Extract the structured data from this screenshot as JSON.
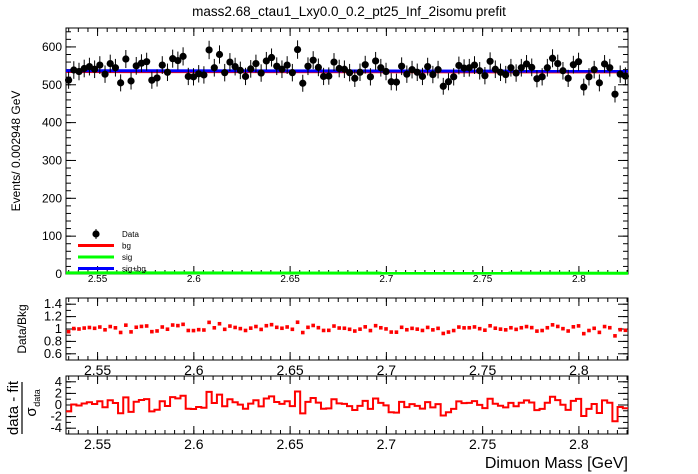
{
  "chart_data": [
    {
      "panel": "main",
      "type": "scatter",
      "title": "mass2.68_ctau1_Lxy0.0_0.2_pt25_Inf_2isomu   prefit",
      "ylabel": "Events/ 0.002948 GeV",
      "xlim": [
        2.5336,
        2.8255
      ],
      "ylim": [
        0,
        650
      ],
      "y_ticks": [
        0,
        100,
        200,
        300,
        400,
        500,
        600
      ],
      "x_ticks": [
        2.55,
        2.6,
        2.65,
        2.7,
        2.75,
        2.8
      ],
      "legend": {
        "placement": "bottom-left",
        "entries": [
          {
            "label": "Data",
            "color": "#000000"
          },
          {
            "label": "bg",
            "color": "#ff0000"
          },
          {
            "label": "sig",
            "color": "#00ff00"
          },
          {
            "label": "sig+bg",
            "color": "#0000ff"
          }
        ]
      },
      "series": [
        {
          "name": "Data",
          "style": "points-with-errors",
          "color": "#000000",
          "y": [
            512,
            539,
            535,
            543,
            548,
            541,
            552,
            528,
            556,
            545,
            505,
            568,
            510,
            550,
            557,
            561,
            512,
            518,
            552,
            533,
            569,
            564,
            575,
            522,
            521,
            529,
            526,
            592,
            545,
            580,
            532,
            560,
            548,
            538,
            522,
            542,
            556,
            531,
            563,
            572,
            549,
            541,
            552,
            532,
            593,
            504,
            549,
            565,
            546,
            522,
            523,
            560,
            543,
            541,
            532,
            517,
            533,
            553,
            521,
            563,
            545,
            535,
            508,
            507,
            549,
            528,
            540,
            533,
            522,
            548,
            527,
            540,
            496,
            508,
            521,
            551,
            544,
            545,
            552,
            537,
            524,
            562,
            541,
            533,
            527,
            545,
            531,
            545,
            555,
            546,
            516,
            521,
            545,
            570,
            556,
            537,
            517,
            553,
            561,
            494,
            521,
            540,
            505,
            555,
            545,
            475,
            528,
            523
          ]
        },
        {
          "name": "bg",
          "style": "line",
          "color": "#ff0000",
          "x": [
            2.5336,
            2.8255
          ],
          "y": [
            535,
            534
          ]
        },
        {
          "name": "sig",
          "style": "line",
          "color": "#00ff00",
          "x": [
            2.5336,
            2.8255
          ],
          "y": [
            3,
            2
          ]
        },
        {
          "name": "sig+bg",
          "style": "line",
          "color": "#0000ff",
          "x": [
            2.5336,
            2.8255
          ],
          "y": [
            537,
            536
          ]
        }
      ]
    },
    {
      "panel": "ratio",
      "type": "scatter",
      "ylabel": "Data/Bkg",
      "ylim": [
        0.5,
        1.5
      ],
      "y_ticks": [
        0.6,
        0.8,
        1,
        1.2,
        1.4
      ],
      "x_ticks": [
        2.55,
        2.6,
        2.65,
        2.7,
        2.75,
        2.8
      ],
      "color": "#ff0000"
    },
    {
      "panel": "pull",
      "type": "area",
      "ylabel_parts": [
        "data - fit",
        "σ",
        "data"
      ],
      "xlabel": "Dimuon Mass [GeV]",
      "ylim": [
        -5,
        5
      ],
      "y_ticks": [
        -4,
        -2,
        0,
        2,
        4
      ],
      "x_ticks": [
        2.55,
        2.6,
        2.65,
        2.7,
        2.75,
        2.8
      ],
      "color": "#ff0000"
    }
  ]
}
